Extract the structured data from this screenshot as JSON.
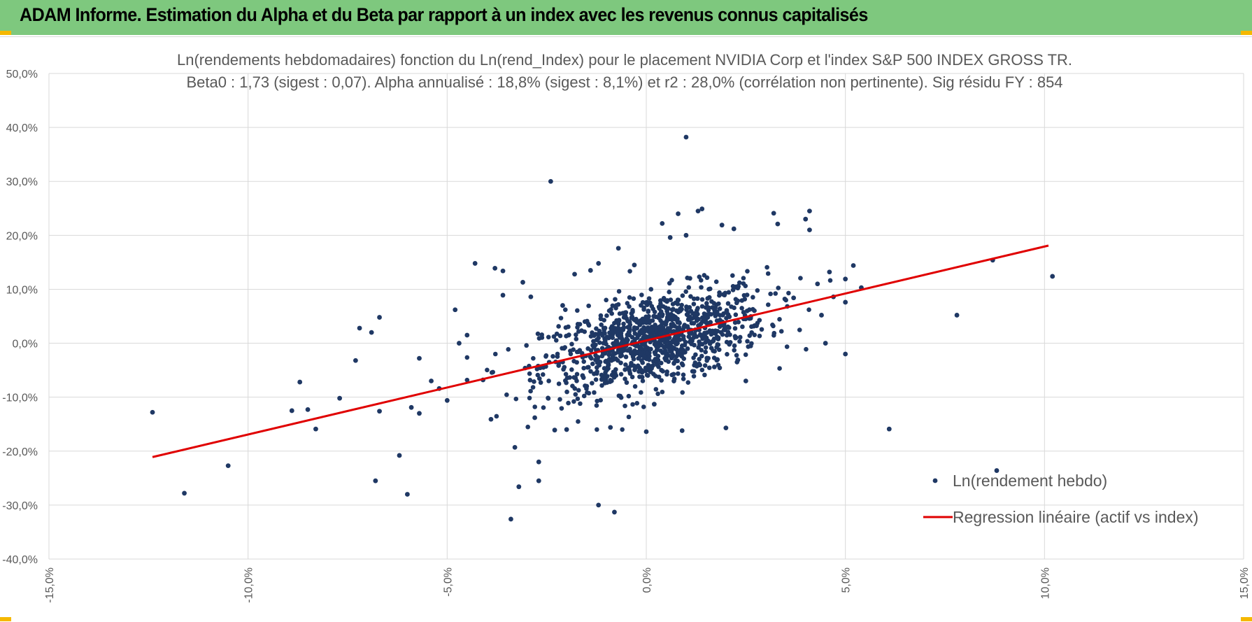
{
  "header": {
    "title": "ADAM Informe. Estimation du Alpha et du Beta par rapport à un index avec les revenus connus capitalisés"
  },
  "colors": {
    "banner": "#7ec87e",
    "points": "#1f3864",
    "regression": "#e00000",
    "grid": "#d9d9d9",
    "text": "#595959",
    "corner": "#f5b800"
  },
  "chart_data": {
    "type": "scatter",
    "title_line1": "Ln(rendements hebdomadaires) fonction du Ln(rend_Index) pour le placement NVIDIA Corp et l'index S&P 500 INDEX GROSS TR.",
    "title_line2": "Beta0 : 1,73  (sigest : 0,07). Alpha annualisé : 18,8% (sigest : 8,1%) et r2 : 28,0% (corrélation non pertinente). Sig résidu FY : 854",
    "xlabel": "",
    "ylabel": "",
    "xlim": [
      -15,
      15
    ],
    "ylim": [
      -40,
      50
    ],
    "x_ticks": [
      -15,
      -10,
      -5,
      0,
      5,
      10,
      15
    ],
    "y_ticks": [
      -40,
      -30,
      -20,
      -10,
      0,
      10,
      20,
      30,
      40,
      50
    ],
    "x_tick_labels": [
      "-15,0%",
      "-10,0%",
      "-5,0%",
      "0,0%",
      "5,0%",
      "10,0%",
      "15,0%"
    ],
    "y_tick_labels": [
      "-40,0%",
      "-30,0%",
      "-20,0%",
      "-10,0%",
      "0,0%",
      "10,0%",
      "20,0%",
      "30,0%",
      "40,0%",
      "50,0%"
    ],
    "grid": true,
    "legend_position": "bottom-right",
    "series": [
      {
        "name": "Ln(rendement hebdo)",
        "type": "scatter",
        "points": [
          [
            -12.4,
            -12.8
          ],
          [
            -11.6,
            -27.8
          ],
          [
            -10.5,
            -22.7
          ],
          [
            -8.9,
            -12.5
          ],
          [
            -8.7,
            -7.2
          ],
          [
            -8.5,
            -12.3
          ],
          [
            -8.3,
            -15.9
          ],
          [
            -7.7,
            -10.2
          ],
          [
            -7.3,
            -3.2
          ],
          [
            -7.2,
            2.8
          ],
          [
            -6.9,
            2.0
          ],
          [
            -6.8,
            -25.5
          ],
          [
            -6.7,
            4.8
          ],
          [
            -6.7,
            -12.6
          ],
          [
            -6.2,
            -20.8
          ],
          [
            -6.0,
            -28.0
          ],
          [
            -5.9,
            -11.9
          ],
          [
            -5.7,
            -13.0
          ],
          [
            -5.7,
            -2.8
          ],
          [
            -5.4,
            -7.0
          ],
          [
            -5.2,
            -8.4
          ],
          [
            -5.0,
            -10.6
          ],
          [
            -4.8,
            6.2
          ],
          [
            -4.7,
            0.0
          ],
          [
            -4.5,
            1.5
          ],
          [
            -4.3,
            14.8
          ],
          [
            -4.1,
            -6.8
          ],
          [
            -3.9,
            -14.1
          ],
          [
            -3.8,
            13.9
          ],
          [
            -3.6,
            13.4
          ],
          [
            -3.6,
            8.9
          ],
          [
            -3.4,
            -32.6
          ],
          [
            -3.3,
            -19.3
          ],
          [
            -3.2,
            -26.6
          ],
          [
            -3.1,
            11.3
          ],
          [
            -2.9,
            8.6
          ],
          [
            -2.8,
            -13.8
          ],
          [
            -2.7,
            -22.0
          ],
          [
            -2.7,
            -25.5
          ],
          [
            -2.4,
            30.0
          ],
          [
            -2.3,
            -16.1
          ],
          [
            -2.1,
            7.0
          ],
          [
            -2.0,
            -16.0
          ],
          [
            -1.8,
            12.8
          ],
          [
            -1.6,
            -6.0
          ],
          [
            -1.4,
            13.5
          ],
          [
            -1.2,
            14.8
          ],
          [
            -1.2,
            -30.0
          ],
          [
            -0.9,
            -15.6
          ],
          [
            -0.8,
            -31.3
          ],
          [
            -0.7,
            17.6
          ],
          [
            -0.3,
            14.5
          ],
          [
            0.0,
            -16.4
          ],
          [
            0.2,
            -11.3
          ],
          [
            0.4,
            22.2
          ],
          [
            0.6,
            19.6
          ],
          [
            0.8,
            24.0
          ],
          [
            0.9,
            -16.2
          ],
          [
            1.0,
            38.2
          ],
          [
            1.0,
            20.0
          ],
          [
            1.3,
            24.5
          ],
          [
            1.4,
            24.9
          ],
          [
            1.9,
            21.9
          ],
          [
            2.0,
            -15.7
          ],
          [
            2.2,
            21.2
          ],
          [
            2.3,
            -3.1
          ],
          [
            2.5,
            -7.0
          ],
          [
            3.2,
            24.1
          ],
          [
            3.3,
            22.1
          ],
          [
            3.7,
            8.4
          ],
          [
            4.0,
            23.0
          ],
          [
            4.1,
            24.5
          ],
          [
            4.1,
            21.0
          ],
          [
            4.3,
            11.0
          ],
          [
            4.4,
            5.2
          ],
          [
            4.5,
            0.0
          ],
          [
            4.6,
            13.2
          ],
          [
            4.7,
            8.6
          ],
          [
            5.0,
            7.6
          ],
          [
            5.0,
            11.9
          ],
          [
            5.0,
            -2.0
          ],
          [
            5.2,
            14.4
          ],
          [
            5.4,
            10.3
          ],
          [
            6.1,
            -15.9
          ],
          [
            7.8,
            5.2
          ],
          [
            8.7,
            15.4
          ],
          [
            8.8,
            -23.6
          ],
          [
            10.2,
            12.4
          ]
        ],
        "cloud": {
          "count": 1100,
          "x_mean": 0.2,
          "x_sd": 1.4,
          "beta": 1.73,
          "intercept": 0.3,
          "resid_sd": 4.2,
          "x_range": [
            -4.5,
            4.8
          ],
          "y_range": [
            -16,
            18
          ]
        }
      },
      {
        "name": "Regression linéaire (actif vs index)",
        "type": "line",
        "x": [
          -12.4,
          10.1
        ],
        "y": [
          -21.1,
          18.1
        ]
      }
    ]
  }
}
